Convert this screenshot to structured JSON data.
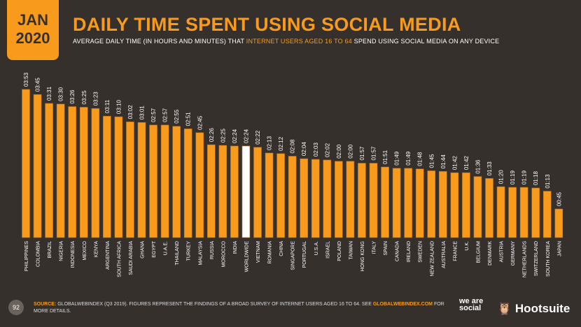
{
  "header": {
    "month": "JAN",
    "year": "2020",
    "title": "DAILY TIME SPENT USING SOCIAL MEDIA",
    "subtitle_pre": "AVERAGE DAILY TIME (IN HOURS AND MINUTES) THAT ",
    "subtitle_hl": "INTERNET USERS AGED 16 TO 64",
    "subtitle_post": " SPEND USING SOCIAL MEDIA ON ANY DEVICE"
  },
  "footer": {
    "page": "92",
    "source_label": "SOURCE:",
    "source_text": " GLOBALWEBINDEX (Q3 2019). FIGURES REPRESENT THE FINDINGS OF A BROAD SURVEY OF INTERNET USERS AGED 16 TO 64. SEE ",
    "source_link": "GLOBALWEBINDEX.COM",
    "source_end": " FOR MORE DETAILS.",
    "logo1": "we are social",
    "logo2": "Hootsuite"
  },
  "colors": {
    "bar": "#f89b1c",
    "highlight": "#ffffff",
    "background": "#36302d"
  },
  "chart_data": {
    "type": "bar",
    "highlight_category": "WORLDWIDE",
    "categories": [
      "PHILIPPINES",
      "COLOMBIA",
      "BRAZIL",
      "NIGERIA",
      "INDONESIA",
      "MEXICO",
      "KENYA",
      "ARGENTINA",
      "SOUTH AFRICA",
      "SAUDI ARABIA",
      "GHANA",
      "EGYPT",
      "U.A.E.",
      "THAILAND",
      "TURKEY",
      "MALAYSIA",
      "RUSSIA",
      "MOROCCO",
      "INDIA",
      "WORLDWIDE",
      "VIETNAM",
      "ROMANIA",
      "CHINA",
      "SINGAPORE",
      "PORTUGAL",
      "U.S.A.",
      "ISRAEL",
      "POLAND",
      "TAIWAN",
      "HONG KONG",
      "ITALY",
      "SPAIN",
      "CANADA",
      "IRELAND",
      "SWEDEN",
      "NEW ZEALAND",
      "AUSTRALIA",
      "FRANCE",
      "U.K.",
      "BELGIUM",
      "DENMARK",
      "AUSTRIA",
      "GERMANY",
      "NETHERLANDS",
      "SWITZERLAND",
      "SOUTH KOREA",
      "JAPAN"
    ],
    "values": [
      "03:53",
      "03:45",
      "03:31",
      "03:30",
      "03:26",
      "03:25",
      "03:23",
      "03:11",
      "03:10",
      "03:02",
      "03:01",
      "02:57",
      "02:57",
      "02:55",
      "02:51",
      "02:45",
      "02:26",
      "02:25",
      "02:24",
      "02:24",
      "02:22",
      "02:13",
      "02:12",
      "02:08",
      "02:04",
      "02:03",
      "02:02",
      "02:00",
      "02:00",
      "01:57",
      "01:57",
      "01:51",
      "01:49",
      "01:49",
      "01:48",
      "01:45",
      "01:44",
      "01:42",
      "01:42",
      "01:36",
      "01:33",
      "01:20",
      "01:19",
      "01:19",
      "01:18",
      "01:13",
      "00:45"
    ]
  }
}
